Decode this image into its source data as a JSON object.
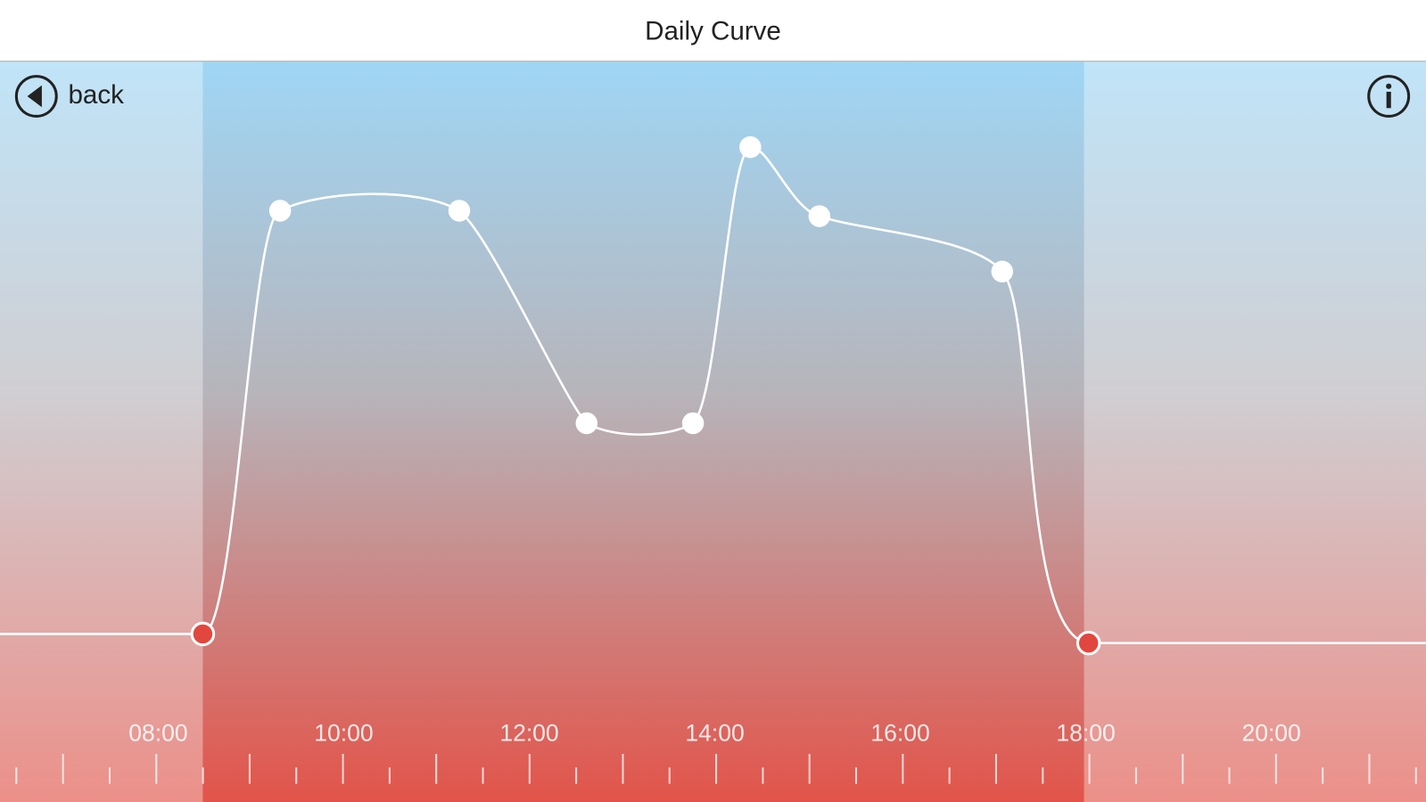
{
  "header": {
    "title": "Daily Curve"
  },
  "back_button": {
    "label": "back"
  },
  "timeline": {
    "labels": [
      "08:00",
      "10:00",
      "12:00",
      "14:00",
      "16:00",
      "18:00",
      "20:00"
    ]
  }
}
